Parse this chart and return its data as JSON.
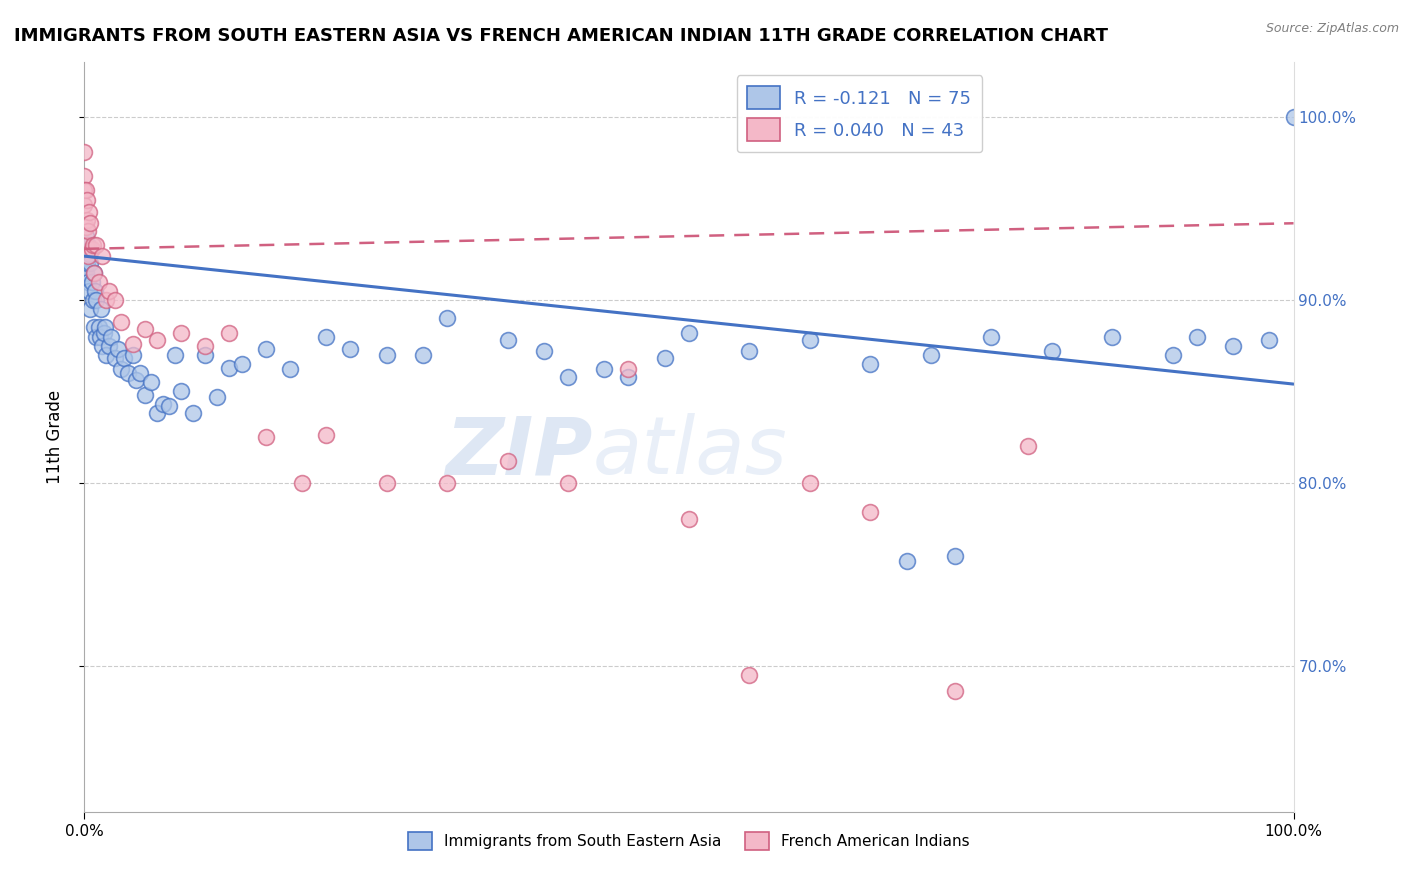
{
  "title": "IMMIGRANTS FROM SOUTH EASTERN ASIA VS FRENCH AMERICAN INDIAN 11TH GRADE CORRELATION CHART",
  "source": "Source: ZipAtlas.com",
  "ylabel": "11th Grade",
  "xlim": [
    0.0,
    1.0
  ],
  "ylim": [
    0.62,
    1.03
  ],
  "yticks": [
    0.7,
    0.8,
    0.9,
    1.0
  ],
  "ytick_labels": [
    "70.0%",
    "80.0%",
    "90.0%",
    "100.0%"
  ],
  "xtick_labels": [
    "0.0%",
    "100.0%"
  ],
  "r_blue": -0.121,
  "n_blue": 75,
  "r_pink": 0.04,
  "n_pink": 43,
  "blue_color": "#aec6e8",
  "pink_color": "#f4b8c8",
  "line_blue": "#4472c4",
  "line_pink": "#d06080",
  "watermark_zip": "ZIP",
  "watermark_atlas": "atlas",
  "blue_trend_x": [
    0.0,
    1.0
  ],
  "blue_trend_y": [
    0.924,
    0.854
  ],
  "pink_trend_x": [
    0.0,
    1.0
  ],
  "pink_trend_y": [
    0.928,
    0.942
  ],
  "blue_scatter_x": [
    0.0,
    0.0,
    0.001,
    0.001,
    0.002,
    0.003,
    0.003,
    0.004,
    0.004,
    0.005,
    0.005,
    0.006,
    0.007,
    0.008,
    0.008,
    0.009,
    0.01,
    0.01,
    0.012,
    0.013,
    0.014,
    0.015,
    0.016,
    0.017,
    0.018,
    0.02,
    0.022,
    0.025,
    0.028,
    0.03,
    0.033,
    0.036,
    0.04,
    0.043,
    0.046,
    0.05,
    0.055,
    0.06,
    0.065,
    0.07,
    0.075,
    0.08,
    0.09,
    0.1,
    0.11,
    0.12,
    0.13,
    0.15,
    0.17,
    0.2,
    0.22,
    0.25,
    0.28,
    0.3,
    0.35,
    0.38,
    0.4,
    0.43,
    0.45,
    0.48,
    0.5,
    0.55,
    0.6,
    0.65,
    0.7,
    0.75,
    0.8,
    0.85,
    0.9,
    0.92,
    0.95,
    0.98,
    1.0,
    0.68,
    0.72
  ],
  "blue_scatter_y": [
    0.93,
    0.915,
    0.935,
    0.915,
    0.92,
    0.93,
    0.91,
    0.925,
    0.905,
    0.92,
    0.895,
    0.91,
    0.9,
    0.915,
    0.885,
    0.905,
    0.9,
    0.88,
    0.885,
    0.88,
    0.895,
    0.875,
    0.882,
    0.885,
    0.87,
    0.875,
    0.88,
    0.868,
    0.873,
    0.862,
    0.868,
    0.86,
    0.87,
    0.856,
    0.86,
    0.848,
    0.855,
    0.838,
    0.843,
    0.842,
    0.87,
    0.85,
    0.838,
    0.87,
    0.847,
    0.863,
    0.865,
    0.873,
    0.862,
    0.88,
    0.873,
    0.87,
    0.87,
    0.89,
    0.878,
    0.872,
    0.858,
    0.862,
    0.858,
    0.868,
    0.882,
    0.872,
    0.878,
    0.865,
    0.87,
    0.88,
    0.872,
    0.88,
    0.87,
    0.88,
    0.875,
    0.878,
    1.0,
    0.757,
    0.76
  ],
  "pink_scatter_x": [
    0.0,
    0.0,
    0.0,
    0.0,
    0.001,
    0.001,
    0.001,
    0.002,
    0.002,
    0.003,
    0.003,
    0.004,
    0.005,
    0.006,
    0.007,
    0.008,
    0.01,
    0.012,
    0.015,
    0.018,
    0.02,
    0.025,
    0.03,
    0.04,
    0.05,
    0.06,
    0.08,
    0.1,
    0.12,
    0.15,
    0.18,
    0.2,
    0.25,
    0.3,
    0.35,
    0.4,
    0.45,
    0.5,
    0.55,
    0.6,
    0.65,
    0.72,
    0.78
  ],
  "pink_scatter_y": [
    0.981,
    0.968,
    0.96,
    0.952,
    0.96,
    0.94,
    0.93,
    0.944,
    0.955,
    0.938,
    0.924,
    0.948,
    0.942,
    0.928,
    0.93,
    0.915,
    0.93,
    0.91,
    0.924,
    0.9,
    0.905,
    0.9,
    0.888,
    0.876,
    0.884,
    0.878,
    0.882,
    0.875,
    0.882,
    0.825,
    0.8,
    0.826,
    0.8,
    0.8,
    0.812,
    0.8,
    0.862,
    0.78,
    0.695,
    0.8,
    0.784,
    0.686,
    0.82
  ]
}
